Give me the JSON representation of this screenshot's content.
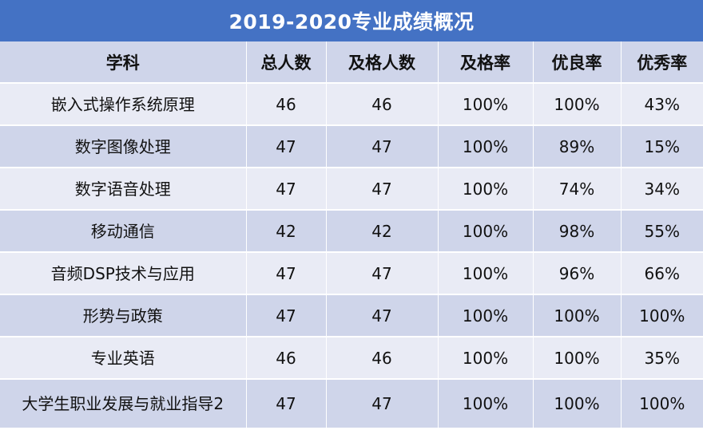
{
  "title": "2019-2020专业成绩概况",
  "columns": [
    "学科",
    "总人数",
    "及格人数",
    "及格率",
    "优良率",
    "优秀率"
  ],
  "rows": [
    [
      "嵌入式操作系统原理",
      "46",
      "46",
      "100%",
      "100%",
      "43%"
    ],
    [
      "数字图像处理",
      "47",
      "47",
      "100%",
      "89%",
      "15%"
    ],
    [
      "数字语音处理",
      "47",
      "47",
      "100%",
      "74%",
      "34%"
    ],
    [
      "移动通信",
      "42",
      "42",
      "100%",
      "98%",
      "55%"
    ],
    [
      "音频DSP技术与应用",
      "47",
      "47",
      "100%",
      "96%",
      "66%"
    ],
    [
      "形势与政策",
      "47",
      "47",
      "100%",
      "100%",
      "100%"
    ],
    [
      "专业英语",
      "46",
      "46",
      "100%",
      "100%",
      "35%"
    ],
    [
      "大学生职业发展与就业指导2",
      "47",
      "47",
      "100%",
      "100%",
      "100%"
    ]
  ],
  "colors": {
    "title_bg": "#4472c4",
    "header_bg": "#cfd5ea",
    "row_light": "#e9ebf5",
    "row_dark": "#cfd5ea"
  }
}
